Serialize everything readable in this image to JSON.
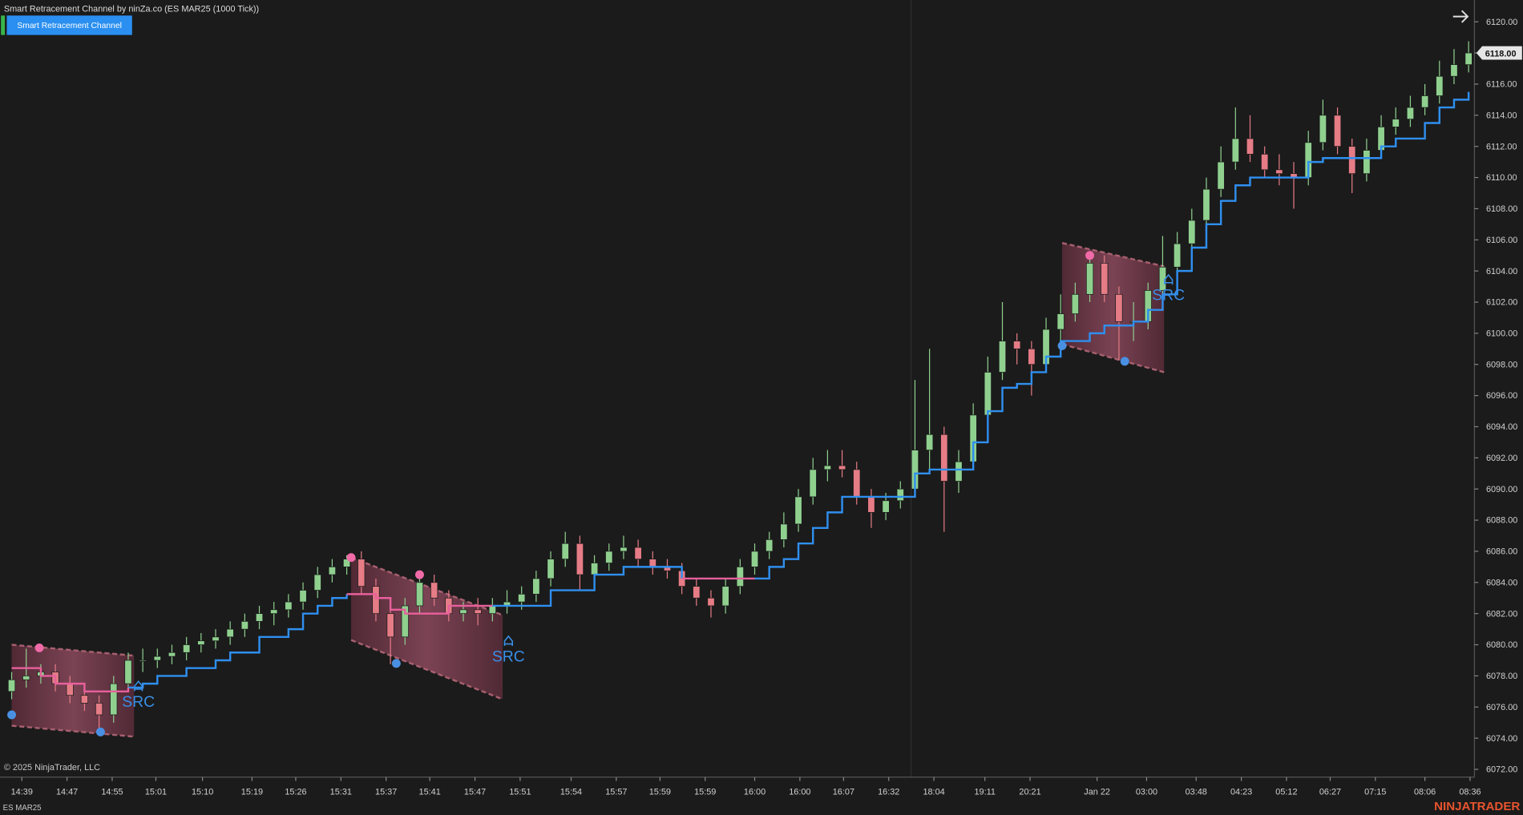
{
  "header": {
    "title": "Smart Retracement Channel by ninZa.co (ES MAR25 (1000 Tick))",
    "button": "Smart Retracement Channel"
  },
  "footer": {
    "copyright": "© 2025 NinjaTrader, LLC",
    "instrument": "ES MAR25",
    "brand": "NINJATRADER"
  },
  "chart_data": {
    "type": "candlestick",
    "up_color": "#8fd08f",
    "down_color": "#e57c86",
    "grid": false,
    "xlim": [
      -0.8,
      100.4
    ],
    "ylim": [
      6071.5,
      6121.4
    ],
    "xticks": [
      {
        "value": 0.7,
        "label": "14:39"
      },
      {
        "value": 3.8,
        "label": "14:47"
      },
      {
        "value": 6.9,
        "label": "14:55"
      },
      {
        "value": 9.9,
        "label": "15:01"
      },
      {
        "value": 13.1,
        "label": "15:10"
      },
      {
        "value": 16.5,
        "label": "15:19"
      },
      {
        "value": 19.5,
        "label": "15:26"
      },
      {
        "value": 22.6,
        "label": "15:31"
      },
      {
        "value": 25.7,
        "label": "15:37"
      },
      {
        "value": 28.7,
        "label": "15:41"
      },
      {
        "value": 31.8,
        "label": "15:47"
      },
      {
        "value": 34.9,
        "label": "15:51"
      },
      {
        "value": 38.4,
        "label": "15:54"
      },
      {
        "value": 41.5,
        "label": "15:57"
      },
      {
        "value": 44.5,
        "label": "15:59"
      },
      {
        "value": 47.6,
        "label": "15:59"
      },
      {
        "value": 51,
        "label": "16:00"
      },
      {
        "value": 54.1,
        "label": "16:00"
      },
      {
        "value": 57.1,
        "label": "16:07"
      },
      {
        "value": 60.2,
        "label": "16:32"
      },
      {
        "value": 63.3,
        "label": "18:04"
      },
      {
        "value": 66.8,
        "label": "19:11"
      },
      {
        "value": 69.9,
        "label": "20:21"
      },
      {
        "value": 74.5,
        "label": "Jan 22"
      },
      {
        "value": 77.9,
        "label": "03:00"
      },
      {
        "value": 81.3,
        "label": "03:48"
      },
      {
        "value": 84.4,
        "label": "04:23"
      },
      {
        "value": 87.5,
        "label": "05:12"
      },
      {
        "value": 90.5,
        "label": "06:27"
      },
      {
        "value": 93.6,
        "label": "07:15"
      },
      {
        "value": 97,
        "label": "08:06"
      },
      {
        "value": 100.1,
        "label": "08:36"
      }
    ],
    "yticks": [
      {
        "value": 6072,
        "label": "6072.00"
      },
      {
        "value": 6074,
        "label": "6074.00"
      },
      {
        "value": 6076,
        "label": "6076.00"
      },
      {
        "value": 6078,
        "label": "6078.00"
      },
      {
        "value": 6080,
        "label": "6080.00"
      },
      {
        "value": 6082,
        "label": "6082.00"
      },
      {
        "value": 6084,
        "label": "6084.00"
      },
      {
        "value": 6086,
        "label": "6086.00"
      },
      {
        "value": 6088,
        "label": "6088.00"
      },
      {
        "value": 6090,
        "label": "6090.00"
      },
      {
        "value": 6092,
        "label": "6092.00"
      },
      {
        "value": 6094,
        "label": "6094.00"
      },
      {
        "value": 6096,
        "label": "6096.00"
      },
      {
        "value": 6098,
        "label": "6098.00"
      },
      {
        "value": 6100,
        "label": "6100.00"
      },
      {
        "value": 6102,
        "label": "6102.00"
      },
      {
        "value": 6104,
        "label": "6104.00"
      },
      {
        "value": 6106,
        "label": "6106.00"
      },
      {
        "value": 6108,
        "label": "6108.00"
      },
      {
        "value": 6110,
        "label": "6110.00"
      },
      {
        "value": 6112,
        "label": "6112.00"
      },
      {
        "value": 6114,
        "label": "6114.00"
      },
      {
        "value": 6116,
        "label": "6116.00"
      },
      {
        "value": 6118,
        "label": "6118.00"
      },
      {
        "value": 6120,
        "label": "6120.00"
      }
    ],
    "last_price": {
      "value": 6118,
      "label": "6118.00"
    },
    "candles": [
      [
        6077,
        6078.25,
        6076.5,
        6077.75
      ],
      [
        6077.75,
        6079.75,
        6077.25,
        6078
      ],
      [
        6078,
        6078.75,
        6077.5,
        6078.25
      ],
      [
        6078.25,
        6078.75,
        6077,
        6077.5
      ],
      [
        6077.5,
        6078,
        6076.25,
        6076.75
      ],
      [
        6076.75,
        6077.25,
        6075.75,
        6076.25
      ],
      [
        6076.25,
        6076.75,
        6074.5,
        6075.5
      ],
      [
        6075.5,
        6078,
        6075,
        6077.5
      ],
      [
        6077.5,
        6079.5,
        6077,
        6079
      ],
      [
        6079,
        6079.75,
        6078.25,
        6079
      ],
      [
        6079,
        6079.75,
        6078.5,
        6079.25
      ],
      [
        6079.25,
        6080,
        6078.75,
        6079.5
      ],
      [
        6079.5,
        6080.5,
        6079,
        6080
      ],
      [
        6080,
        6080.75,
        6079.5,
        6080.25
      ],
      [
        6080.25,
        6081,
        6079.75,
        6080.5
      ],
      [
        6080.5,
        6081.5,
        6080,
        6081
      ],
      [
        6081,
        6082,
        6080.5,
        6081.5
      ],
      [
        6081.5,
        6082.5,
        6081,
        6082
      ],
      [
        6082,
        6082.75,
        6081.25,
        6082.25
      ],
      [
        6082.25,
        6083.25,
        6081.75,
        6082.75
      ],
      [
        6082.75,
        6084,
        6082.25,
        6083.5
      ],
      [
        6083.5,
        6085,
        6083,
        6084.5
      ],
      [
        6084.5,
        6085.5,
        6084,
        6085
      ],
      [
        6085,
        6085.75,
        6084.5,
        6085.5
      ],
      [
        6085.5,
        6086,
        6083.25,
        6083.75
      ],
      [
        6083.75,
        6084.25,
        6081.5,
        6082
      ],
      [
        6082,
        6082.5,
        6078.75,
        6080.5
      ],
      [
        6080.5,
        6083,
        6080,
        6082.5
      ],
      [
        6082.5,
        6084.5,
        6082,
        6084
      ],
      [
        6084,
        6084.5,
        6082.5,
        6083
      ],
      [
        6083,
        6083.5,
        6081.5,
        6082
      ],
      [
        6082,
        6082.75,
        6081.5,
        6082.25
      ],
      [
        6082.25,
        6083,
        6081.25,
        6082
      ],
      [
        6082,
        6083,
        6081.5,
        6082.5
      ],
      [
        6082.5,
        6083.5,
        6082,
        6082.75
      ],
      [
        6082.75,
        6083.75,
        6082.25,
        6083.25
      ],
      [
        6083.25,
        6084.75,
        6082.75,
        6084.25
      ],
      [
        6084.25,
        6086,
        6083.75,
        6085.5
      ],
      [
        6085.5,
        6087.25,
        6085,
        6086.5
      ],
      [
        6086.5,
        6087,
        6083.5,
        6084.5
      ],
      [
        6084.5,
        6085.75,
        6084,
        6085.25
      ],
      [
        6085.25,
        6086.5,
        6084.75,
        6086
      ],
      [
        6086,
        6087,
        6085.5,
        6086.25
      ],
      [
        6086.25,
        6086.75,
        6085,
        6085.5
      ],
      [
        6085.5,
        6086,
        6084.5,
        6085
      ],
      [
        6085,
        6085.5,
        6084.25,
        6084.75
      ],
      [
        6084.75,
        6085.25,
        6083.25,
        6083.75
      ],
      [
        6083.75,
        6084.25,
        6082.5,
        6083
      ],
      [
        6083,
        6083.5,
        6081.75,
        6082.5
      ],
      [
        6082.5,
        6084.25,
        6082,
        6083.75
      ],
      [
        6083.75,
        6085.5,
        6083.25,
        6085
      ],
      [
        6085,
        6086.5,
        6084.5,
        6086
      ],
      [
        6086,
        6087.25,
        6085.5,
        6086.75
      ],
      [
        6086.75,
        6088.5,
        6086.25,
        6087.75
      ],
      [
        6087.75,
        6090,
        6087.25,
        6089.5
      ],
      [
        6089.5,
        6092,
        6089,
        6091.25
      ],
      [
        6091.25,
        6092.5,
        6090.5,
        6091.5
      ],
      [
        6091.5,
        6092.5,
        6090.75,
        6091.25
      ],
      [
        6091.25,
        6091.75,
        6089,
        6089.5
      ],
      [
        6089.5,
        6090,
        6087.5,
        6088.5
      ],
      [
        6088.5,
        6089.75,
        6088,
        6089.25
      ],
      [
        6089.25,
        6090.5,
        6088.75,
        6090
      ],
      [
        6090,
        6097,
        6089.5,
        6092.5
      ],
      [
        6092.5,
        6099,
        6091,
        6093.5
      ],
      [
        6093.5,
        6094,
        6087.25,
        6090.5
      ],
      [
        6090.5,
        6092.5,
        6089.75,
        6091.75
      ],
      [
        6091.75,
        6095.5,
        6091.25,
        6094.75
      ],
      [
        6094.75,
        6098.5,
        6094.25,
        6097.5
      ],
      [
        6097.5,
        6102,
        6097,
        6099.5
      ],
      [
        6099.5,
        6100,
        6098,
        6099
      ],
      [
        6099,
        6099.5,
        6096,
        6098
      ],
      [
        6098,
        6101,
        6097.5,
        6100.25
      ],
      [
        6100.25,
        6102.5,
        6099.5,
        6101.25
      ],
      [
        6101.25,
        6103.25,
        6100.75,
        6102.5
      ],
      [
        6102.5,
        6105,
        6102,
        6104.5
      ],
      [
        6104.5,
        6105,
        6102,
        6102.5
      ],
      [
        6102.5,
        6103,
        6098.25,
        6100.75
      ],
      [
        6100.75,
        6102,
        6099.5,
        6100.75
      ],
      [
        6100.75,
        6103.25,
        6100.25,
        6102.75
      ],
      [
        6102.75,
        6106.25,
        6102.25,
        6104.25
      ],
      [
        6104.25,
        6106.5,
        6103.75,
        6105.75
      ],
      [
        6105.75,
        6108,
        6105.25,
        6107.25
      ],
      [
        6107.25,
        6110,
        6106.75,
        6109.25
      ],
      [
        6109.25,
        6112,
        6108.75,
        6111
      ],
      [
        6111,
        6114.5,
        6110.5,
        6112.5
      ],
      [
        6112.5,
        6114,
        6111,
        6111.5
      ],
      [
        6111.5,
        6112,
        6110,
        6110.5
      ],
      [
        6110.5,
        6111.5,
        6109.5,
        6110.25
      ],
      [
        6110.25,
        6111,
        6108,
        6110
      ],
      [
        6110,
        6113,
        6109.5,
        6112.25
      ],
      [
        6112.25,
        6115,
        6111.75,
        6114
      ],
      [
        6114,
        6114.5,
        6111.5,
        6112
      ],
      [
        6112,
        6112.5,
        6109,
        6110.25
      ],
      [
        6110.25,
        6112.5,
        6109.75,
        6111.75
      ],
      [
        6111.75,
        6114,
        6111.25,
        6113.25
      ],
      [
        6113.25,
        6114.5,
        6112.75,
        6113.75
      ],
      [
        6113.75,
        6115.25,
        6113.25,
        6114.5
      ],
      [
        6114.5,
        6116,
        6114,
        6115.25
      ],
      [
        6115.25,
        6117.5,
        6114.75,
        6116.5
      ],
      [
        6116.5,
        6118.25,
        6116,
        6117.25
      ],
      [
        6117.25,
        6118.75,
        6116.75,
        6118
      ]
    ],
    "series": [
      {
        "color": "#2f8ff0",
        "values": [
          null,
          null,
          null,
          null,
          null,
          null,
          null,
          null,
          6077.25,
          6077.5,
          6078,
          6078,
          6078.5,
          6078.5,
          6079,
          6079.5,
          6079.5,
          6080.5,
          6080.5,
          6081,
          6082,
          6082.5,
          6083,
          6083.25,
          null,
          null,
          null,
          null,
          null,
          null,
          null,
          null,
          null,
          6082.5,
          6082.5,
          6082.5,
          6082.5,
          6083.5,
          6083.5,
          6083.5,
          6084.5,
          6084.5,
          6085,
          6085,
          6085,
          6085,
          6084.25,
          null,
          null,
          null,
          null,
          6084.25,
          6085,
          6085.5,
          6086.5,
          6087.5,
          6088.5,
          6089.5,
          6089.5,
          6089.5,
          6089.5,
          6089.5,
          6091,
          6091.25,
          6091.25,
          6091.25,
          6093,
          6095,
          6096.5,
          6096.75,
          6097.5,
          6098.5,
          6099.5,
          6099.5,
          6100,
          6100.5,
          6100.5,
          6100.75,
          6101.5,
          6102.5,
          6104,
          6105.5,
          6107,
          6108.5,
          6109.5,
          6110,
          6110,
          6110,
          6110,
          6111,
          6111.25,
          6111.25,
          6111.25,
          6111.25,
          6112,
          6112.5,
          6112.5,
          6113.5,
          6114.5,
          6115,
          6115.5
        ]
      },
      {
        "color": "#e8609c",
        "values": [
          6078.5,
          6078.5,
          6078,
          6077.5,
          6077.5,
          6077,
          6077,
          6077,
          6077.25,
          null,
          null,
          null,
          null,
          null,
          null,
          null,
          null,
          null,
          null,
          null,
          null,
          null,
          null,
          6083.25,
          6083.25,
          6083,
          6082.25,
          6082,
          6082,
          6082,
          6082.5,
          6082.5,
          6082.5,
          6082.5,
          null,
          null,
          null,
          null,
          null,
          null,
          null,
          null,
          null,
          null,
          null,
          null,
          6084.25,
          6084.25,
          6084.25,
          6084.25,
          6084.25,
          6084.25,
          null,
          null,
          null,
          null,
          null,
          null,
          null,
          null,
          null,
          null,
          null,
          null,
          null,
          null,
          null,
          null,
          null,
          null,
          null,
          null,
          null,
          null,
          null,
          null,
          null,
          null,
          null,
          null,
          null,
          null,
          null,
          null,
          null,
          null,
          null,
          null,
          null,
          null,
          null,
          null,
          null,
          null,
          null,
          null,
          null,
          null,
          null,
          null,
          null
        ]
      }
    ],
    "channels": [
      {
        "x": [
          0,
          8.4
        ],
        "top": [
          6080,
          6079.3
        ],
        "bottom": [
          6074.8,
          6074.1
        ]
      },
      {
        "x": [
          23.3,
          33.7
        ],
        "top": [
          6085.6,
          6081.9
        ],
        "bottom": [
          6080.3,
          6076.5
        ]
      },
      {
        "x": [
          72.1,
          79.1
        ],
        "top": [
          6105.8,
          6104.3
        ],
        "bottom": [
          6099.3,
          6097.5
        ]
      }
    ],
    "pivots": [
      {
        "x": 1.9,
        "y": 6079.8,
        "color": "#f06aa8"
      },
      {
        "x": 23.3,
        "y": 6085.6,
        "color": "#f06aa8"
      },
      {
        "x": 28,
        "y": 6084.5,
        "color": "#f06aa8"
      },
      {
        "x": 74,
        "y": 6105,
        "color": "#f06aa8"
      },
      {
        "x": 0,
        "y": 6075.5,
        "color": "#4a90e2"
      },
      {
        "x": 6.1,
        "y": 6074.4,
        "color": "#4a90e2"
      },
      {
        "x": 26.4,
        "y": 6078.8,
        "color": "#4a90e2"
      },
      {
        "x": 72.1,
        "y": 6099.2,
        "color": "#4a90e2"
      },
      {
        "x": 76.4,
        "y": 6098.2,
        "color": "#4a90e2"
      }
    ],
    "signals": [
      {
        "x": 8.7,
        "y": 6076.4,
        "label": "SRC"
      },
      {
        "x": 34.1,
        "y": 6079.3,
        "label": "SRC"
      },
      {
        "x": 79.4,
        "y": 6102.5,
        "label": "SRC"
      }
    ]
  }
}
